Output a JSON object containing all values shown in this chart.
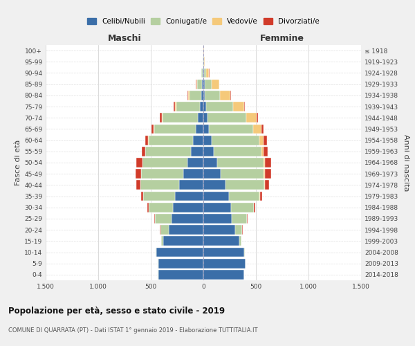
{
  "age_groups": [
    "0-4",
    "5-9",
    "10-14",
    "15-19",
    "20-24",
    "25-29",
    "30-34",
    "35-39",
    "40-44",
    "45-49",
    "50-54",
    "55-59",
    "60-64",
    "65-69",
    "70-74",
    "75-79",
    "80-84",
    "85-89",
    "90-94",
    "95-99",
    "100+"
  ],
  "birth_years": [
    "2014-2018",
    "2009-2013",
    "2004-2008",
    "1999-2003",
    "1994-1998",
    "1989-1993",
    "1984-1988",
    "1979-1983",
    "1974-1978",
    "1969-1973",
    "1964-1968",
    "1959-1963",
    "1954-1958",
    "1949-1953",
    "1944-1948",
    "1939-1943",
    "1934-1938",
    "1929-1933",
    "1924-1928",
    "1919-1923",
    "≤ 1918"
  ],
  "maschi": {
    "celibi": [
      430,
      430,
      450,
      380,
      330,
      300,
      290,
      270,
      230,
      190,
      150,
      120,
      100,
      75,
      55,
      35,
      20,
      10,
      5,
      3,
      2
    ],
    "coniugati": [
      1,
      2,
      5,
      20,
      80,
      160,
      230,
      300,
      370,
      400,
      430,
      430,
      420,
      390,
      330,
      220,
      110,
      50,
      15,
      4,
      1
    ],
    "vedovi": [
      0,
      0,
      0,
      0,
      0,
      0,
      0,
      0,
      1,
      1,
      2,
      3,
      5,
      10,
      12,
      15,
      15,
      8,
      2,
      0,
      0
    ],
    "divorziati": [
      0,
      0,
      0,
      1,
      2,
      5,
      10,
      25,
      35,
      55,
      55,
      30,
      25,
      20,
      15,
      10,
      5,
      2,
      1,
      0,
      0
    ]
  },
  "femmine": {
    "nubili": [
      390,
      400,
      390,
      345,
      300,
      270,
      260,
      245,
      210,
      165,
      130,
      100,
      80,
      55,
      40,
      25,
      15,
      10,
      5,
      3,
      2
    ],
    "coniugate": [
      1,
      1,
      4,
      15,
      70,
      145,
      220,
      290,
      370,
      410,
      440,
      450,
      450,
      420,
      370,
      260,
      140,
      70,
      20,
      5,
      1
    ],
    "vedove": [
      0,
      0,
      0,
      0,
      0,
      0,
      1,
      2,
      5,
      8,
      15,
      25,
      45,
      75,
      95,
      100,
      100,
      70,
      30,
      5,
      1
    ],
    "divorziate": [
      0,
      0,
      0,
      0,
      2,
      5,
      10,
      20,
      40,
      65,
      60,
      35,
      30,
      20,
      15,
      10,
      5,
      3,
      1,
      0,
      0
    ]
  },
  "colors": {
    "celibi": "#3b6ea8",
    "coniugati": "#b5cfa0",
    "vedovi": "#f5c97a",
    "divorziati": "#d13b2a"
  },
  "xlim": 1500,
  "title": "Popolazione per età, sesso e stato civile - 2019",
  "subtitle": "COMUNE DI QUARRATA (PT) - Dati ISTAT 1° gennaio 2019 - Elaborazione TUTTITALIA.IT",
  "ylabel_left": "Fasce di età",
  "ylabel_right": "Anni di nascita",
  "xlabel_maschi": "Maschi",
  "xlabel_femmine": "Femmine",
  "bg_color": "#f0f0f0",
  "plot_bg_color": "#ffffff",
  "xtick_labels": [
    "1.500",
    "1.000",
    "500",
    "0",
    "500",
    "1.000",
    "1.500"
  ],
  "xtick_vals": [
    -1500,
    -1000,
    -500,
    0,
    500,
    1000,
    1500
  ]
}
